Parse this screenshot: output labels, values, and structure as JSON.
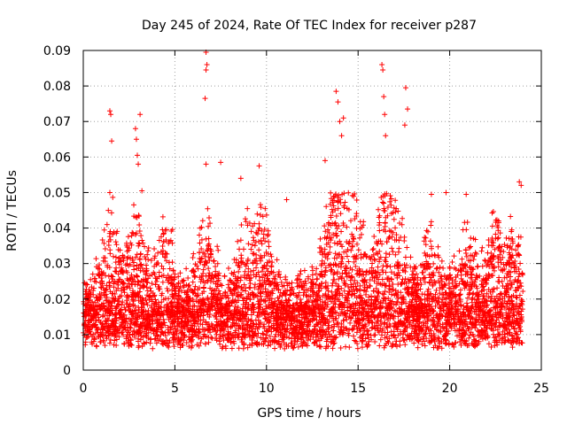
{
  "chart_data": {
    "type": "scatter",
    "title": "Day 245 of 2024, Rate Of TEC Index for receiver p287",
    "xlabel": "GPS time / hours",
    "ylabel": "ROTI / TECUs",
    "xlim": [
      0,
      25
    ],
    "ylim": [
      0,
      0.09
    ],
    "x_ticks": [
      0,
      5,
      10,
      15,
      20,
      25
    ],
    "x_tick_labels": [
      "0",
      "5",
      "10",
      "15",
      "20",
      "25"
    ],
    "y_ticks": [
      0,
      0.01,
      0.02,
      0.03,
      0.04,
      0.05,
      0.06,
      0.07,
      0.08,
      0.09
    ],
    "y_tick_labels": [
      "0",
      "0.01",
      "0.02",
      "0.03",
      "0.04",
      "0.05",
      "0.06",
      "0.07",
      "0.08",
      "0.09"
    ],
    "grid": true,
    "marker": "+",
    "marker_color": "#ff0000",
    "series": [
      {
        "name": "p287",
        "description_points": "dense band of ROTI values mostly between 0.005 and 0.03 TECU/min across 0-24 h, with spikes",
        "x": [
          1.45,
          1.5,
          1.55,
          1.45,
          2.85,
          2.9,
          2.95,
          3.0,
          3.1,
          3.2,
          6.7,
          6.75,
          6.7,
          6.65,
          6.7,
          7.5,
          8.6,
          9.6,
          11.1,
          13.2,
          13.8,
          13.9,
          14.0,
          14.1,
          14.2,
          16.3,
          16.35,
          16.4,
          16.45,
          16.5,
          17.6,
          17.7,
          17.55,
          19.0,
          19.8,
          20.9,
          23.8,
          23.9
        ],
        "y": [
          0.073,
          0.072,
          0.0645,
          0.05,
          0.068,
          0.065,
          0.0605,
          0.058,
          0.072,
          0.0505,
          0.0895,
          0.086,
          0.0845,
          0.0765,
          0.058,
          0.0585,
          0.054,
          0.0575,
          0.048,
          0.059,
          0.0785,
          0.0755,
          0.07,
          0.066,
          0.071,
          0.086,
          0.0845,
          0.077,
          0.072,
          0.066,
          0.0795,
          0.0735,
          0.069,
          0.0495,
          0.05,
          0.0495,
          0.053,
          0.052
        ]
      }
    ]
  }
}
